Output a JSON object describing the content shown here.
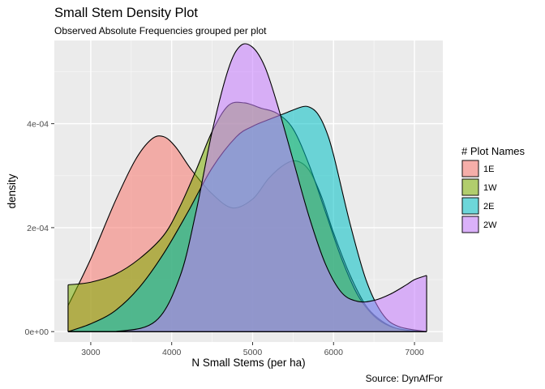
{
  "chart_data": {
    "type": "area",
    "title": "Small Stem Density Plot",
    "subtitle": "Observed Absolute Frequencies grouped per plot",
    "xlabel": "N Small Stems (per ha)",
    "ylabel": "density",
    "caption": "Source: DynAfFor",
    "xlim": [
      2550,
      7350
    ],
    "ylim": [
      -2e-05,
      0.00056
    ],
    "x_ticks": [
      3000,
      4000,
      5000,
      6000,
      7000
    ],
    "x_tick_labels": [
      "3000",
      "4000",
      "5000",
      "6000",
      "7000"
    ],
    "y_ticks": [
      0,
      0.0002,
      0.0004
    ],
    "y_tick_labels": [
      "0e+00",
      "2e-04",
      "4e-04"
    ],
    "grid": true,
    "legend": {
      "title": "# Plot Names",
      "position": "right"
    },
    "series": [
      {
        "name": "1E",
        "color": "#F8766D",
        "x": [
          2720,
          3000,
          3300,
          3550,
          3750,
          3900,
          4050,
          4250,
          4500,
          4750,
          5000,
          5200,
          5400,
          5550,
          5700,
          5850,
          6000,
          6200,
          6400,
          6600,
          6800,
          7000,
          7150
        ],
        "y": [
          5e-05,
          0.00014,
          0.00025,
          0.00033,
          0.00037,
          0.000375,
          0.000355,
          0.00031,
          0.000265,
          0.000238,
          0.000255,
          0.000295,
          0.000322,
          0.000328,
          0.00031,
          0.00026,
          0.00019,
          0.00011,
          5e-05,
          2e-05,
          5e-06,
          1e-06,
          0.0
        ]
      },
      {
        "name": "1W",
        "color": "#7CAE00",
        "x": [
          2720,
          3000,
          3300,
          3600,
          3900,
          4100,
          4300,
          4500,
          4700,
          4900,
          5100,
          5300,
          5500,
          5700,
          5900,
          6100,
          6300,
          6500,
          6700,
          6900,
          7150
        ],
        "y": [
          9e-05,
          9.5e-05,
          0.00011,
          0.00014,
          0.000185,
          0.00024,
          0.00031,
          0.000385,
          0.000435,
          0.00044,
          0.00043,
          0.00042,
          0.00039,
          0.00032,
          0.00023,
          0.00014,
          7e-05,
          3e-05,
          1e-05,
          3e-06,
          0.0
        ]
      },
      {
        "name": "2E",
        "color": "#00BFC4",
        "x": [
          2720,
          3000,
          3300,
          3600,
          3900,
          4200,
          4500,
          4800,
          5000,
          5200,
          5400,
          5600,
          5700,
          5800,
          5900,
          6000,
          6200,
          6400,
          6600,
          6800,
          7150
        ],
        "y": [
          0.0,
          1.5e-05,
          4e-05,
          8.5e-05,
          0.00015,
          0.00023,
          0.000315,
          0.000375,
          0.000395,
          0.000408,
          0.00042,
          0.000432,
          0.000432,
          0.00042,
          0.00039,
          0.00034,
          0.00021,
          0.0001,
          3.5e-05,
          1e-05,
          0.0
        ]
      },
      {
        "name": "2W",
        "color": "#C77CFF",
        "x": [
          2720,
          3300,
          3800,
          4100,
          4300,
          4500,
          4700,
          4850,
          5000,
          5150,
          5300,
          5500,
          5700,
          5900,
          6100,
          6300,
          6500,
          6700,
          6900,
          7000,
          7150
        ],
        "y": [
          0.0,
          0.0,
          2e-05,
          0.000105,
          0.00023,
          0.000385,
          0.000505,
          0.00055,
          0.000547,
          0.00051,
          0.00044,
          0.00033,
          0.00022,
          0.00013,
          7.5e-05,
          5.8e-05,
          6e-05,
          7.2e-05,
          9e-05,
          0.0001,
          0.000108
        ]
      }
    ]
  }
}
